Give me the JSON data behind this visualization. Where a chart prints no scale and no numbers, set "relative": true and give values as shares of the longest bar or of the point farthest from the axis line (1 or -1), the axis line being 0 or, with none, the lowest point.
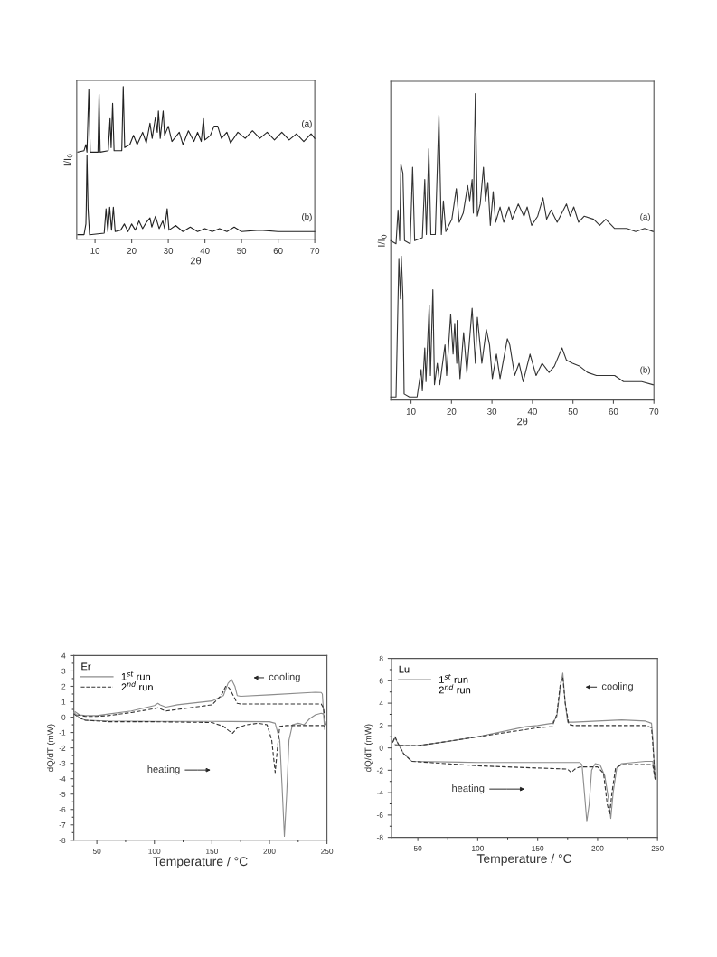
{
  "chart_data": [
    {
      "type": "line",
      "relative": true,
      "xlabel": "2θ",
      "ylabel": "I/I$_{0}$",
      "xlim": [
        5,
        70
      ],
      "xticks": [
        10,
        20,
        30,
        40,
        50,
        60,
        70
      ],
      "tick_labels": "x",
      "legend": false,
      "series": [
        {
          "name": "(a)",
          "color": "#222222",
          "x": [
            5.3,
            7.0,
            7.5,
            7.8,
            8.3,
            8.7,
            10.8,
            11.1,
            11.4,
            13.6,
            14.1,
            14.4,
            14.8,
            15.2,
            17.3,
            17.7,
            18.1,
            19.5,
            20.5,
            21.5,
            23,
            24,
            25,
            25.6,
            26.5,
            27,
            27.3,
            27.8,
            28.6,
            29,
            30,
            31,
            33,
            34,
            35.5,
            37,
            38,
            39,
            39.6,
            40,
            41.5,
            42.5,
            43.5,
            44.5,
            46,
            47,
            49,
            51,
            53,
            55,
            57,
            59,
            61,
            63,
            65,
            67,
            69,
            70
          ],
          "values": [
            0.57,
            0.58,
            0.62,
            0.57,
            0.98,
            0.57,
            0.57,
            0.95,
            0.57,
            0.58,
            0.79,
            0.6,
            0.89,
            0.58,
            0.58,
            1.0,
            0.6,
            0.62,
            0.68,
            0.62,
            0.7,
            0.63,
            0.76,
            0.66,
            0.8,
            0.7,
            0.84,
            0.66,
            0.84,
            0.68,
            0.74,
            0.64,
            0.7,
            0.62,
            0.71,
            0.64,
            0.7,
            0.64,
            0.79,
            0.65,
            0.68,
            0.74,
            0.74,
            0.66,
            0.7,
            0.63,
            0.7,
            0.66,
            0.71,
            0.66,
            0.7,
            0.65,
            0.7,
            0.65,
            0.69,
            0.64,
            0.69,
            0.66
          ]
        },
        {
          "name": "(b)",
          "color": "#222222",
          "x": [
            5.3,
            7.0,
            7.5,
            7.6,
            7.8,
            8.1,
            8.5,
            12.5,
            13,
            13.5,
            14,
            14.5,
            15,
            15.5,
            17,
            18,
            19,
            20,
            21,
            22,
            23,
            24,
            25,
            25.5,
            26.5,
            27.5,
            28.5,
            29,
            29.7,
            30.2,
            32,
            34,
            36,
            38,
            40,
            42,
            44,
            46,
            48,
            50,
            55,
            60,
            65,
            70
          ],
          "values": [
            0.03,
            0.03,
            0.1,
            0.2,
            0.55,
            0.2,
            0.03,
            0.04,
            0.2,
            0.05,
            0.21,
            0.06,
            0.21,
            0.05,
            0.06,
            0.1,
            0.05,
            0.1,
            0.06,
            0.12,
            0.07,
            0.11,
            0.14,
            0.08,
            0.15,
            0.07,
            0.12,
            0.07,
            0.2,
            0.06,
            0.09,
            0.05,
            0.08,
            0.05,
            0.07,
            0.05,
            0.07,
            0.05,
            0.08,
            0.05,
            0.06,
            0.05,
            0.05,
            0.05
          ]
        }
      ]
    },
    {
      "type": "line",
      "relative": true,
      "xlabel": "2θ",
      "ylabel": "I/I$_{0}$",
      "xlim": [
        5,
        70
      ],
      "xticks": [
        10,
        20,
        30,
        40,
        50,
        60,
        70
      ],
      "tick_labels": "x",
      "legend": false,
      "series": [
        {
          "name": "(a)",
          "color": "#333333",
          "x": [
            5,
            6.3,
            6.8,
            7.2,
            7.5,
            8.0,
            8.4,
            9.8,
            10.4,
            10.9,
            12.8,
            13.4,
            13.8,
            14.4,
            14.9,
            16.0,
            16.9,
            17.5,
            18.0,
            18.6,
            20.1,
            21.2,
            21.9,
            22.9,
            24.0,
            24.5,
            25.1,
            25.4,
            25.9,
            26.4,
            27.1,
            27.9,
            28.4,
            29.0,
            29.6,
            30.3,
            30.9,
            32.0,
            32.9,
            34.2,
            35.0,
            36.5,
            37.9,
            38.7,
            39.8,
            41.3,
            42.6,
            43.5,
            44.6,
            46.1,
            48.4,
            49.3,
            50.2,
            51.4,
            52.8,
            55.1,
            56.6,
            58.1,
            60.3,
            63.3,
            65.5,
            67.7,
            69.8
          ],
          "values": [
            0.52,
            0.51,
            0.62,
            0.52,
            0.77,
            0.74,
            0.52,
            0.51,
            0.76,
            0.52,
            0.53,
            0.72,
            0.54,
            0.82,
            0.54,
            0.54,
            0.93,
            0.54,
            0.65,
            0.55,
            0.59,
            0.69,
            0.58,
            0.61,
            0.7,
            0.65,
            0.72,
            0.61,
            1.0,
            0.6,
            0.64,
            0.76,
            0.65,
            0.71,
            0.57,
            0.68,
            0.58,
            0.63,
            0.58,
            0.63,
            0.59,
            0.64,
            0.6,
            0.63,
            0.57,
            0.6,
            0.66,
            0.59,
            0.62,
            0.58,
            0.64,
            0.6,
            0.63,
            0.58,
            0.6,
            0.59,
            0.57,
            0.59,
            0.56,
            0.56,
            0.55,
            0.56,
            0.55
          ]
        },
        {
          "name": "(b)",
          "color": "#333333",
          "x": [
            5,
            6.3,
            7.0,
            7.4,
            7.6,
            8.0,
            8.3,
            9.6,
            11.5,
            12.5,
            12.8,
            13.4,
            13.7,
            14.5,
            14.8,
            15.4,
            15.8,
            16.5,
            17.1,
            18.4,
            18.8,
            19.8,
            20.4,
            20.8,
            21.3,
            21.4,
            22.1,
            23.0,
            23.8,
            25.1,
            25.9,
            26.4,
            27.5,
            28.6,
            29.4,
            30.1,
            31.1,
            32.0,
            33.8,
            34.4,
            35.6,
            36.7,
            37.7,
            39.4,
            40.9,
            42.4,
            44.1,
            45.4,
            47.3,
            48.4,
            49.9,
            51.7,
            53.6,
            55.8,
            58.1,
            60.3,
            62.5,
            64.8,
            67.0,
            69.8
          ],
          "values": [
            0.01,
            0.01,
            0.46,
            0.33,
            0.47,
            0.34,
            0.02,
            0.01,
            0.01,
            0.1,
            0.03,
            0.17,
            0.06,
            0.31,
            0.08,
            0.36,
            0.05,
            0.12,
            0.05,
            0.18,
            0.08,
            0.28,
            0.15,
            0.25,
            0.12,
            0.26,
            0.07,
            0.22,
            0.09,
            0.3,
            0.12,
            0.27,
            0.12,
            0.23,
            0.18,
            0.07,
            0.15,
            0.07,
            0.2,
            0.18,
            0.08,
            0.12,
            0.06,
            0.15,
            0.08,
            0.12,
            0.09,
            0.11,
            0.17,
            0.13,
            0.12,
            0.11,
            0.09,
            0.08,
            0.08,
            0.08,
            0.06,
            0.06,
            0.06,
            0.05
          ]
        }
      ]
    },
    {
      "type": "line",
      "xlabel": "Temperature / °C",
      "ylabel": "dQ/dT (mW)",
      "xlim": [
        30,
        250
      ],
      "xticks": [
        50,
        100,
        150,
        200,
        250
      ],
      "ylim": [
        -8,
        4
      ],
      "yticks": [
        -8,
        -7,
        -6,
        -5,
        -4,
        -3,
        -2,
        -1,
        0,
        1,
        2,
        3,
        4
      ],
      "legend": "top left",
      "legend_title": "Er",
      "annotations": [
        "cooling",
        "heating"
      ],
      "series": [
        {
          "name": "1$^{st}$ run",
          "color": "#8c8c8c",
          "line_style": "solid",
          "x": [
            30,
            35,
            40,
            60,
            100,
            150,
            200,
            205,
            209,
            211,
            213,
            215,
            217,
            220,
            225,
            230,
            235,
            240,
            245,
            247,
            248,
            246,
            245,
            240,
            200,
            175,
            172,
            170,
            167,
            164,
            160,
            150,
            120,
            110,
            105,
            103,
            100,
            80,
            60,
            50,
            40,
            35,
            31
          ],
          "values": [
            0.3,
            -0.05,
            -0.2,
            -0.25,
            -0.28,
            -0.28,
            -0.3,
            -0.4,
            -1.5,
            -4.5,
            -7.75,
            -5,
            -1.5,
            -0.5,
            -0.4,
            -0.5,
            -0.1,
            0.15,
            0.25,
            0.2,
            -0.8,
            1.5,
            1.6,
            1.62,
            1.45,
            1.35,
            1.4,
            2.0,
            2.45,
            2.2,
            1.4,
            1.05,
            0.8,
            0.65,
            0.8,
            0.9,
            0.75,
            0.4,
            0.2,
            0.1,
            0.1,
            0.15,
            0.35
          ]
        },
        {
          "name": "2$^{nd}$ run",
          "color": "#333333",
          "line_style": "dashed",
          "x": [
            30,
            35,
            40,
            60,
            100,
            150,
            160,
            165,
            168,
            172,
            180,
            190,
            198,
            202,
            205,
            207,
            209,
            215,
            230,
            247,
            249,
            247,
            245,
            200,
            175,
            172,
            170,
            165,
            162,
            158,
            150,
            120,
            110,
            103,
            100,
            80,
            60,
            50,
            40,
            33
          ],
          "values": [
            0.2,
            -0.05,
            -0.2,
            -0.3,
            -0.3,
            -0.35,
            -0.6,
            -0.9,
            -1.05,
            -0.7,
            -0.5,
            -0.4,
            -0.5,
            -1.5,
            -3.6,
            -2,
            -0.6,
            -0.55,
            -0.55,
            -0.55,
            -0.6,
            0.6,
            0.85,
            0.85,
            0.85,
            0.9,
            1.2,
            1.9,
            2.0,
            1.4,
            0.8,
            0.5,
            0.4,
            0.6,
            0.55,
            0.3,
            0.1,
            0.05,
            0.05,
            0.15
          ]
        }
      ]
    },
    {
      "type": "line",
      "xlabel": "Temperature / °C",
      "ylabel": "dQ/dT (mW)",
      "xlim": [
        28,
        250
      ],
      "xticks": [
        50,
        100,
        150,
        200,
        250
      ],
      "ylim": [
        -8,
        8
      ],
      "yticks": [
        -8,
        -6,
        -4,
        -2,
        0,
        2,
        4,
        6,
        8
      ],
      "legend": "top left",
      "legend_title": "Lu",
      "annotations": [
        "cooling",
        "heating"
      ],
      "series": [
        {
          "name": "1$^{st}$ run",
          "color": "#8c8c8c",
          "line_style": "solid",
          "x": [
            29,
            31,
            33,
            38,
            45,
            100,
            185,
            187,
            189,
            191,
            193,
            195,
            198,
            202,
            206,
            209,
            211,
            213,
            216,
            220,
            240,
            246,
            248,
            246,
            245,
            240,
            220,
            180,
            175,
            173,
            171,
            169,
            166,
            162,
            150,
            140,
            100,
            70,
            50,
            40,
            31
          ],
          "values": [
            0.5,
            0.9,
            0.5,
            -0.5,
            -1.2,
            -1.3,
            -1.3,
            -1.5,
            -4,
            -6.6,
            -5,
            -2,
            -1.4,
            -1.5,
            -2.5,
            -4.5,
            -6.3,
            -4,
            -1.8,
            -1.4,
            -1.2,
            -1.2,
            -2.8,
            1,
            2.2,
            2.4,
            2.5,
            2.3,
            2.3,
            4,
            6.7,
            5.5,
            2.8,
            2.2,
            2.0,
            1.9,
            1.0,
            0.5,
            0.2,
            0.2,
            0.3
          ]
        },
        {
          "name": "2$^{nd}$ run",
          "color": "#333333",
          "line_style": "dashed",
          "x": [
            29,
            31,
            33,
            38,
            45,
            100,
            150,
            175,
            178,
            181,
            185,
            200,
            205,
            208,
            210,
            212,
            215,
            220,
            246,
            248,
            246,
            245,
            240,
            200,
            180,
            176,
            173,
            171,
            169,
            166,
            162,
            150,
            100,
            70,
            50,
            40,
            31
          ],
          "values": [
            0.5,
            1.0,
            0.5,
            -0.5,
            -1.2,
            -1.6,
            -1.8,
            -1.9,
            -2.2,
            -1.9,
            -1.7,
            -1.7,
            -2.3,
            -5,
            -6,
            -4,
            -1.8,
            -1.5,
            -1.5,
            -2.8,
            0.5,
            1.8,
            2.0,
            2.0,
            2.0,
            2.1,
            4,
            6.3,
            5.8,
            3,
            1.9,
            1.8,
            1.0,
            0.5,
            0.2,
            0.2,
            0.2
          ]
        }
      ]
    }
  ]
}
